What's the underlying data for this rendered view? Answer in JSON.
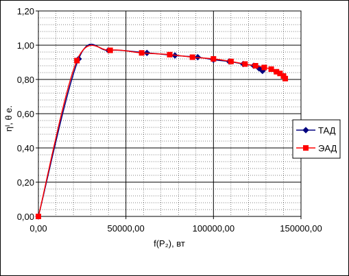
{
  "chart_data": {
    "type": "line",
    "xlabel": "f(P₂), вт",
    "ylabel": "ηᴵ, θ e.",
    "xlim": [
      0,
      150000
    ],
    "ylim": [
      0,
      1.2
    ],
    "x_ticks": [
      "0,00",
      "50000,00",
      "100000,00",
      "150000,00"
    ],
    "y_ticks": [
      "0,00",
      "0,20",
      "0,40",
      "0,60",
      "0,80",
      "1,00",
      "1,20"
    ],
    "grid": true,
    "legend_position": "right",
    "series": [
      {
        "name": "ТАД",
        "color": "#00007f",
        "marker": "diamond",
        "points": [
          [
            0,
            0
          ],
          [
            23000,
            0.92
          ],
          [
            40000,
            0.97
          ],
          [
            62000,
            0.955
          ],
          [
            78000,
            0.94
          ],
          [
            91000,
            0.93
          ],
          [
            100000,
            0.915
          ],
          [
            109000,
            0.905
          ],
          [
            117000,
            0.89
          ],
          [
            123000,
            0.88
          ],
          [
            126000,
            0.865
          ],
          [
            128000,
            0.85
          ]
        ]
      },
      {
        "name": "ЭАД",
        "color": "#ff0000",
        "marker": "square",
        "points": [
          [
            0,
            0
          ],
          [
            22000,
            0.91
          ],
          [
            41000,
            0.97
          ],
          [
            59000,
            0.955
          ],
          [
            75000,
            0.945
          ],
          [
            88000,
            0.93
          ],
          [
            100000,
            0.92
          ],
          [
            110000,
            0.905
          ],
          [
            118000,
            0.89
          ],
          [
            124000,
            0.88
          ],
          [
            129000,
            0.87
          ],
          [
            133000,
            0.86
          ],
          [
            136000,
            0.845
          ],
          [
            138000,
            0.835
          ],
          [
            140000,
            0.82
          ],
          [
            141000,
            0.805
          ]
        ]
      }
    ]
  }
}
